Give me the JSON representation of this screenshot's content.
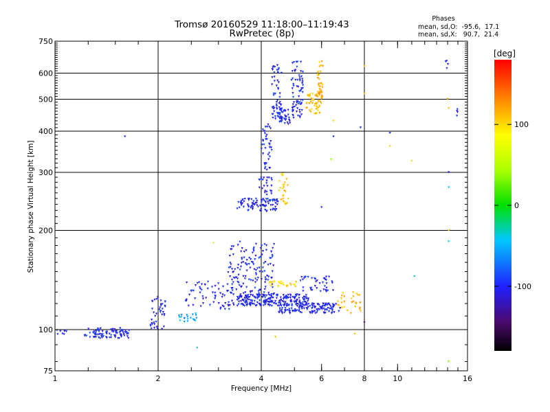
{
  "chart_data": {
    "type": "scatter",
    "title": "Tromsø 20160529 11:18:00–11:19:43",
    "subtitle": "RwPretec (8p)",
    "xlabel": "Frequency [MHz]",
    "ylabel": "Stationary phase Virtual Height [km]",
    "x_scale": "log2",
    "y_scale": "log",
    "xlim": [
      1,
      16
    ],
    "ylim": [
      75,
      750
    ],
    "x_ticks": [
      1,
      2,
      4,
      6,
      8,
      10,
      16
    ],
    "x_tick_labels": [
      "1",
      "2",
      "4",
      "6",
      "8",
      "10",
      "16"
    ],
    "y_ticks": [
      75,
      100,
      200,
      300,
      400,
      500,
      600,
      750
    ],
    "y_tick_labels": [
      "75",
      "100",
      "200",
      "300",
      "400",
      "500",
      "600",
      "750"
    ],
    "grid": true,
    "stats": {
      "header": "Phases",
      "line_o": "mean, sd,O:  -95.6,  17.1",
      "line_x": "mean, sd,X:   90.7,  21.4"
    },
    "colorbar": {
      "label": "[deg]",
      "range": [
        -180,
        180
      ],
      "ticks": [
        100,
        0,
        -100
      ],
      "tick_labels": [
        "100",
        "0",
        "-100"
      ]
    },
    "clusters": [
      {
        "f": [
          1.0,
          1.08
        ],
        "h": [
          96,
          100
        ],
        "phase": -100,
        "n": 8
      },
      {
        "f": [
          1.22,
          1.65
        ],
        "h": [
          94,
          101
        ],
        "phase": -100,
        "n": 85
      },
      {
        "f": [
          1.9,
          2.1
        ],
        "h": [
          100,
          128
        ],
        "phase": -100,
        "n": 40
      },
      {
        "f": [
          2.3,
          2.6
        ],
        "h": [
          105,
          112
        ],
        "phase": -60,
        "n": 20
      },
      {
        "f": [
          2.4,
          3.3
        ],
        "h": [
          115,
          140
        ],
        "phase": -100,
        "n": 60
      },
      {
        "f": [
          3.2,
          4.4
        ],
        "h": [
          118,
          185
        ],
        "phase": -100,
        "n": 160
      },
      {
        "f": [
          3.4,
          5.5
        ],
        "h": [
          118,
          128
        ],
        "phase": -100,
        "n": 220
      },
      {
        "f": [
          4.5,
          6.8
        ],
        "h": [
          112,
          120
        ],
        "phase": -100,
        "n": 130
      },
      {
        "f": [
          4.2,
          5.1
        ],
        "h": [
          135,
          140
        ],
        "phase": 100,
        "n": 25
      },
      {
        "f": [
          5.2,
          6.5
        ],
        "h": [
          130,
          145
        ],
        "phase": -100,
        "n": 40
      },
      {
        "f": [
          6.6,
          7.8
        ],
        "h": [
          112,
          130
        ],
        "phase": 110,
        "n": 30
      },
      {
        "f": [
          3.4,
          4.5
        ],
        "h": [
          228,
          250
        ],
        "phase": -100,
        "n": 90
      },
      {
        "f": [
          3.9,
          4.3
        ],
        "h": [
          255,
          290
        ],
        "phase": -100,
        "n": 25
      },
      {
        "f": [
          4.5,
          4.8
        ],
        "h": [
          240,
          300
        ],
        "phase": 110,
        "n": 25
      },
      {
        "f": [
          4.0,
          4.3
        ],
        "h": [
          300,
          420
        ],
        "phase": -100,
        "n": 40
      },
      {
        "f": [
          4.3,
          4.6
        ],
        "h": [
          420,
          640
        ],
        "phase": -100,
        "n": 60
      },
      {
        "f": [
          4.5,
          5.0
        ],
        "h": [
          420,
          470
        ],
        "phase": -100,
        "n": 40
      },
      {
        "f": [
          4.9,
          5.3
        ],
        "h": [
          440,
          650
        ],
        "phase": -100,
        "n": 70
      },
      {
        "f": [
          5.4,
          6.0
        ],
        "h": [
          450,
          520
        ],
        "phase": 110,
        "n": 50
      },
      {
        "f": [
          5.8,
          6.05
        ],
        "h": [
          500,
          660
        ],
        "phase": 115,
        "n": 40
      },
      {
        "f": [
          13.8,
          14.2
        ],
        "h": [
          600,
          660
        ],
        "phase": -100,
        "n": 4
      },
      {
        "f": [
          14.8,
          15.0
        ],
        "h": [
          420,
          490
        ],
        "phase": -100,
        "n": 4
      }
    ],
    "points": [
      {
        "f": 1.6,
        "h": 385,
        "phase": -100
      },
      {
        "f": 2.9,
        "h": 183,
        "phase": 60
      },
      {
        "f": 2.6,
        "h": 88,
        "phase": -30
      },
      {
        "f": 6.5,
        "h": 430,
        "phase": 100
      },
      {
        "f": 6.5,
        "h": 385,
        "phase": -100
      },
      {
        "f": 6.4,
        "h": 328,
        "phase": 40
      },
      {
        "f": 7.8,
        "h": 410,
        "phase": -100
      },
      {
        "f": 8.0,
        "h": 630,
        "phase": 110
      },
      {
        "f": 8.0,
        "h": 520,
        "phase": 110
      },
      {
        "f": 8.0,
        "h": 105,
        "phase": -150
      },
      {
        "f": 7.5,
        "h": 97,
        "phase": 110
      },
      {
        "f": 9.5,
        "h": 395,
        "phase": -100
      },
      {
        "f": 9.5,
        "h": 360,
        "phase": 100
      },
      {
        "f": 11.0,
        "h": 325,
        "phase": 100
      },
      {
        "f": 11.2,
        "h": 145,
        "phase": -40
      },
      {
        "f": 14.0,
        "h": 500,
        "phase": 120
      },
      {
        "f": 14.1,
        "h": 470,
        "phase": 110
      },
      {
        "f": 14.1,
        "h": 300,
        "phase": -100
      },
      {
        "f": 14.1,
        "h": 270,
        "phase": -40
      },
      {
        "f": 14.1,
        "h": 200,
        "phase": 100
      },
      {
        "f": 14.1,
        "h": 185,
        "phase": -40
      },
      {
        "f": 14.1,
        "h": 80,
        "phase": 40
      },
      {
        "f": 6.0,
        "h": 235,
        "phase": -100
      },
      {
        "f": 4.4,
        "h": 95,
        "phase": 110
      }
    ]
  }
}
